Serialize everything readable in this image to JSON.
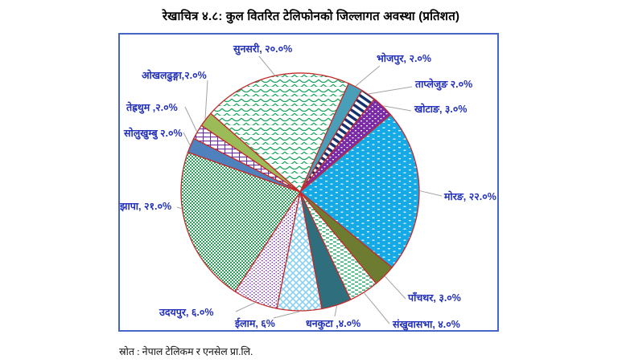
{
  "title": "रेखाचित्र ४.८:  कुल वितरित टेलिफोनको जिल्लागत अवस्था (प्रतिशत)",
  "source": "स्रोत : नेपाल टेलिकम र एनसेल प्रा.लि.",
  "chart_data": {
    "type": "pie",
    "title": "रेखाचित्र ४.८: कुल वितरित टेलिफोनको जिल्लागत अवस्था (प्रतिशत)",
    "unit": "percent",
    "direction": "clockwise",
    "start_angle_deg": -48.7,
    "labeled_total_percent": 99,
    "slice_border_color": "#c42a2a",
    "label_color": "#2230bb",
    "leader_line_color": "#a3a3a3",
    "frame_color": "#4565c8",
    "slices": [
      {
        "id": "sunsari",
        "district": "सुनसरी",
        "value": 20.0,
        "label": "सुनसरी, २०.०%",
        "style": "scales",
        "color": "#1aa35c"
      },
      {
        "id": "bhojpur",
        "district": "भोजपुर",
        "value": 2.0,
        "label": "भोजपुर, २.०%",
        "style": "solid",
        "color": "#4a9fb8"
      },
      {
        "id": "taplejung",
        "district": "ताप्लेजुङ",
        "value": 2.0,
        "label": "ताप्लेजुङ २.०%",
        "style": "diag-stripes",
        "color": "#12316e"
      },
      {
        "id": "khotang",
        "district": "खोटाङ",
        "value": 3.0,
        "label": "खोटाङ, ३.०%",
        "style": "white-dots-on-purple",
        "color": "#7a2ba5"
      },
      {
        "id": "morang",
        "district": "मोरङ",
        "value": 22.0,
        "label": "मोरङ, २२.०%",
        "style": "white-dash-on-cyan",
        "color": "#15aae5"
      },
      {
        "id": "panchthar",
        "district": "पाँचथर",
        "value": 3.0,
        "label": "पाँचथर, ३.०%",
        "style": "solid",
        "color": "#6d7c31"
      },
      {
        "id": "sankhuwasabha",
        "district": "संखुवासभा",
        "value": 4.0,
        "label": "संखुवासभा, ४.०%",
        "style": "green-dash-on-white",
        "color": "#1aa35c"
      },
      {
        "id": "dhankuta",
        "district": "धनकुटा",
        "value": 4.0,
        "label": "धनकुटा ,४.०%",
        "style": "solid",
        "color": "#2f6f7d"
      },
      {
        "id": "ilam",
        "district": "ईलाम",
        "value": 6.0,
        "label": "ईलाम, ६%",
        "style": "lattice",
        "color": "#7fd0f0"
      },
      {
        "id": "udayapur",
        "district": "उदयपुर",
        "value": 6.0,
        "label": "उदयपुर, ६.०%",
        "style": "purple-dots-on-white",
        "color": "#7a2ba5"
      },
      {
        "id": "jhapa",
        "district": "झापा",
        "value": 21.0,
        "label": "झापा, २१.०%",
        "style": "checker",
        "color": "#2ca05a"
      },
      {
        "id": "solukhumbu",
        "district": "सोलुखुम्बु",
        "value": 2.0,
        "label": "सोलुखुम्बु २.०%",
        "style": "solid",
        "color": "#4f81bd"
      },
      {
        "id": "terhathum",
        "district": "तेह्रथुम",
        "value": 2.0,
        "label": "तेह्रथुम ,२.०%",
        "style": "purple-grid-on-white",
        "color": "#6a2ea0"
      },
      {
        "id": "okhaldhunga",
        "district": "ओखलढुङ्गा",
        "value": 2.0,
        "label": "ओखलढुङ्गा,२.०%",
        "style": "solid",
        "color": "#9bbb59"
      }
    ]
  }
}
